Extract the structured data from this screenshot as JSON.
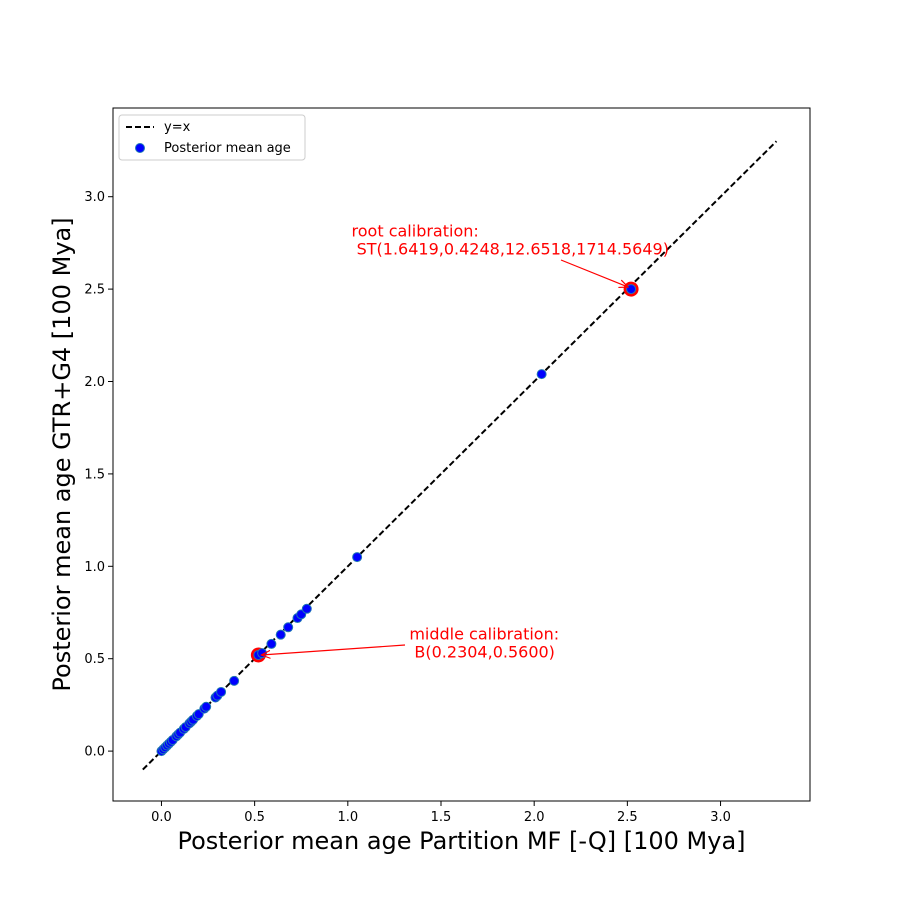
{
  "chart_data": {
    "type": "scatter",
    "xlabel": "Posterior mean age Partition MF [-Q] [100 Mya]",
    "ylabel": "Posterior mean age GTR+G4 [100 Mya]",
    "xlim": [
      -0.26,
      3.48
    ],
    "ylim": [
      -0.27,
      3.48
    ],
    "xticks": [
      "0.0",
      "0.5",
      "1.0",
      "1.5",
      "2.0",
      "2.5",
      "3.0"
    ],
    "yticks": [
      "0.0",
      "0.5",
      "1.0",
      "1.5",
      "2.0",
      "2.5",
      "3.0"
    ],
    "grid": false,
    "legend": {
      "placement": "top-left",
      "entries": [
        "y=x",
        "Posterior mean age"
      ]
    },
    "reference_line": {
      "name": "y=x",
      "from": [
        -0.1,
        -0.1
      ],
      "to": [
        3.3,
        3.3
      ],
      "style": "dashed",
      "color": "#000000"
    },
    "series": [
      {
        "name": "Posterior mean age",
        "color": "#0000ff",
        "edge_color": "#1f77b4",
        "points": [
          [
            0.0,
            0.0
          ],
          [
            0.01,
            0.01
          ],
          [
            0.02,
            0.02
          ],
          [
            0.03,
            0.03
          ],
          [
            0.04,
            0.04
          ],
          [
            0.05,
            0.05
          ],
          [
            0.06,
            0.06
          ],
          [
            0.08,
            0.08
          ],
          [
            0.09,
            0.09
          ],
          [
            0.1,
            0.1
          ],
          [
            0.12,
            0.12
          ],
          [
            0.13,
            0.13
          ],
          [
            0.15,
            0.15
          ],
          [
            0.16,
            0.16
          ],
          [
            0.17,
            0.17
          ],
          [
            0.19,
            0.19
          ],
          [
            0.2,
            0.2
          ],
          [
            0.23,
            0.23
          ],
          [
            0.24,
            0.24
          ],
          [
            0.29,
            0.29
          ],
          [
            0.3,
            0.3
          ],
          [
            0.32,
            0.32
          ],
          [
            0.39,
            0.38
          ],
          [
            0.52,
            0.52
          ],
          [
            0.54,
            0.53
          ],
          [
            0.59,
            0.58
          ],
          [
            0.64,
            0.63
          ],
          [
            0.68,
            0.67
          ],
          [
            0.73,
            0.72
          ],
          [
            0.75,
            0.74
          ],
          [
            0.78,
            0.77
          ],
          [
            1.05,
            1.05
          ],
          [
            2.04,
            2.04
          ],
          [
            2.52,
            2.5
          ]
        ]
      }
    ],
    "highlights": [
      {
        "x": 2.52,
        "y": 2.5,
        "color": "#ff0000"
      },
      {
        "x": 0.52,
        "y": 0.52,
        "color": "#ff0000"
      }
    ],
    "annotations": [
      {
        "lines": [
          "root calibration:",
          " ST(1.6419,0.4248,12.6518,1714.5649)"
        ],
        "text_x": 1.02,
        "text_y": 2.73,
        "target_x": 2.52,
        "target_y": 2.5,
        "color": "#ff0000"
      },
      {
        "lines": [
          "middle calibration:",
          " B(0.2304,0.5600)"
        ],
        "text_x": 1.33,
        "text_y": 0.55,
        "target_x": 0.52,
        "target_y": 0.52,
        "color": "#ff0000"
      }
    ]
  }
}
